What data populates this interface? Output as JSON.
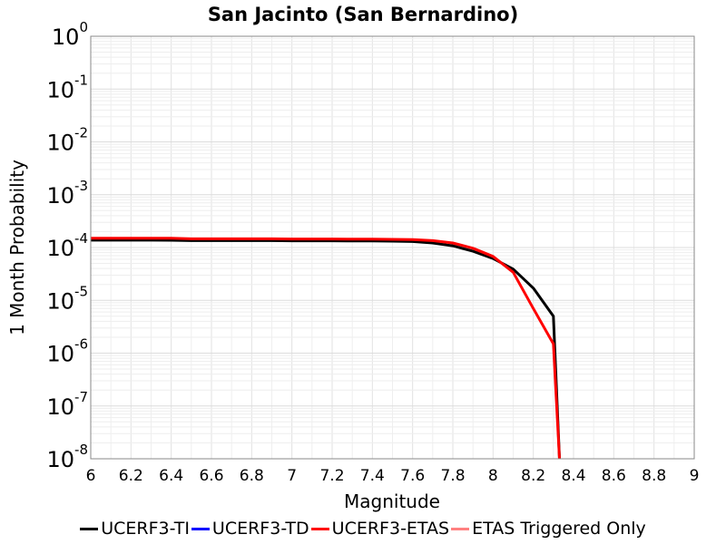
{
  "chart_data": {
    "type": "line",
    "title": "San Jacinto (San Bernardino)",
    "xlabel": "Magnitude",
    "ylabel": "1 Month Probability",
    "xlim": [
      6,
      9
    ],
    "ylim": [
      1e-08,
      1
    ],
    "yscale": "log",
    "grid": true,
    "legend_position": "bottom",
    "x_ticks": [
      "6",
      "6.2",
      "6.4",
      "6.6",
      "6.8",
      "7",
      "7.2",
      "7.4",
      "7.6",
      "7.8",
      "8",
      "8.2",
      "8.4",
      "8.6",
      "8.8",
      "9"
    ],
    "y_ticks": [
      {
        "base": "10",
        "exp": "0"
      },
      {
        "base": "10",
        "exp": "-1"
      },
      {
        "base": "10",
        "exp": "-2"
      },
      {
        "base": "10",
        "exp": "-3"
      },
      {
        "base": "10",
        "exp": "-4"
      },
      {
        "base": "10",
        "exp": "-5"
      },
      {
        "base": "10",
        "exp": "-6"
      },
      {
        "base": "10",
        "exp": "-7"
      },
      {
        "base": "10",
        "exp": "-8"
      }
    ],
    "series": [
      {
        "name": "UCERF3-TI",
        "color": "#000000",
        "points": [
          [
            6.0,
            0.000138
          ],
          [
            6.1,
            0.000138
          ],
          [
            6.2,
            0.000138
          ],
          [
            6.3,
            0.000138
          ],
          [
            6.4,
            0.000137
          ],
          [
            6.5,
            0.000135
          ],
          [
            6.6,
            0.000135
          ],
          [
            6.7,
            0.000135
          ],
          [
            6.8,
            0.000135
          ],
          [
            6.9,
            0.000135
          ],
          [
            7.0,
            0.000134
          ],
          [
            7.1,
            0.000134
          ],
          [
            7.2,
            0.000134
          ],
          [
            7.3,
            0.000133
          ],
          [
            7.4,
            0.000133
          ],
          [
            7.5,
            0.000132
          ],
          [
            7.6,
            0.00013
          ],
          [
            7.7,
            0.000122
          ],
          [
            7.8,
            0.000108
          ],
          [
            7.9,
            8.5e-05
          ],
          [
            8.0,
            6.2e-05
          ],
          [
            8.1,
            3.9e-05
          ],
          [
            8.2,
            1.7e-05
          ],
          [
            8.3,
            5e-06
          ],
          [
            8.33,
            1e-08
          ]
        ]
      },
      {
        "name": "UCERF3-TD",
        "color": "#0000ff",
        "points": []
      },
      {
        "name": "UCERF3-ETAS",
        "color": "#ff0000",
        "points": [
          [
            6.0,
            0.00015
          ],
          [
            6.1,
            0.00015
          ],
          [
            6.2,
            0.00015
          ],
          [
            6.3,
            0.00015
          ],
          [
            6.4,
            0.00015
          ],
          [
            6.5,
            0.000146
          ],
          [
            6.6,
            0.000146
          ],
          [
            6.7,
            0.000146
          ],
          [
            6.8,
            0.000146
          ],
          [
            6.9,
            0.000146
          ],
          [
            7.0,
            0.000145
          ],
          [
            7.1,
            0.000145
          ],
          [
            7.2,
            0.000145
          ],
          [
            7.3,
            0.000144
          ],
          [
            7.4,
            0.000144
          ],
          [
            7.5,
            0.000143
          ],
          [
            7.6,
            0.000141
          ],
          [
            7.7,
            0.000135
          ],
          [
            7.8,
            0.000122
          ],
          [
            7.9,
            9.7e-05
          ],
          [
            8.0,
            6.8e-05
          ],
          [
            8.1,
            3.4e-05
          ],
          [
            8.2,
            7e-06
          ],
          [
            8.3,
            1.5e-06
          ],
          [
            8.33,
            1e-08
          ]
        ]
      },
      {
        "name": "ETAS Triggered Only",
        "color": "#ff8080",
        "points": []
      }
    ]
  }
}
